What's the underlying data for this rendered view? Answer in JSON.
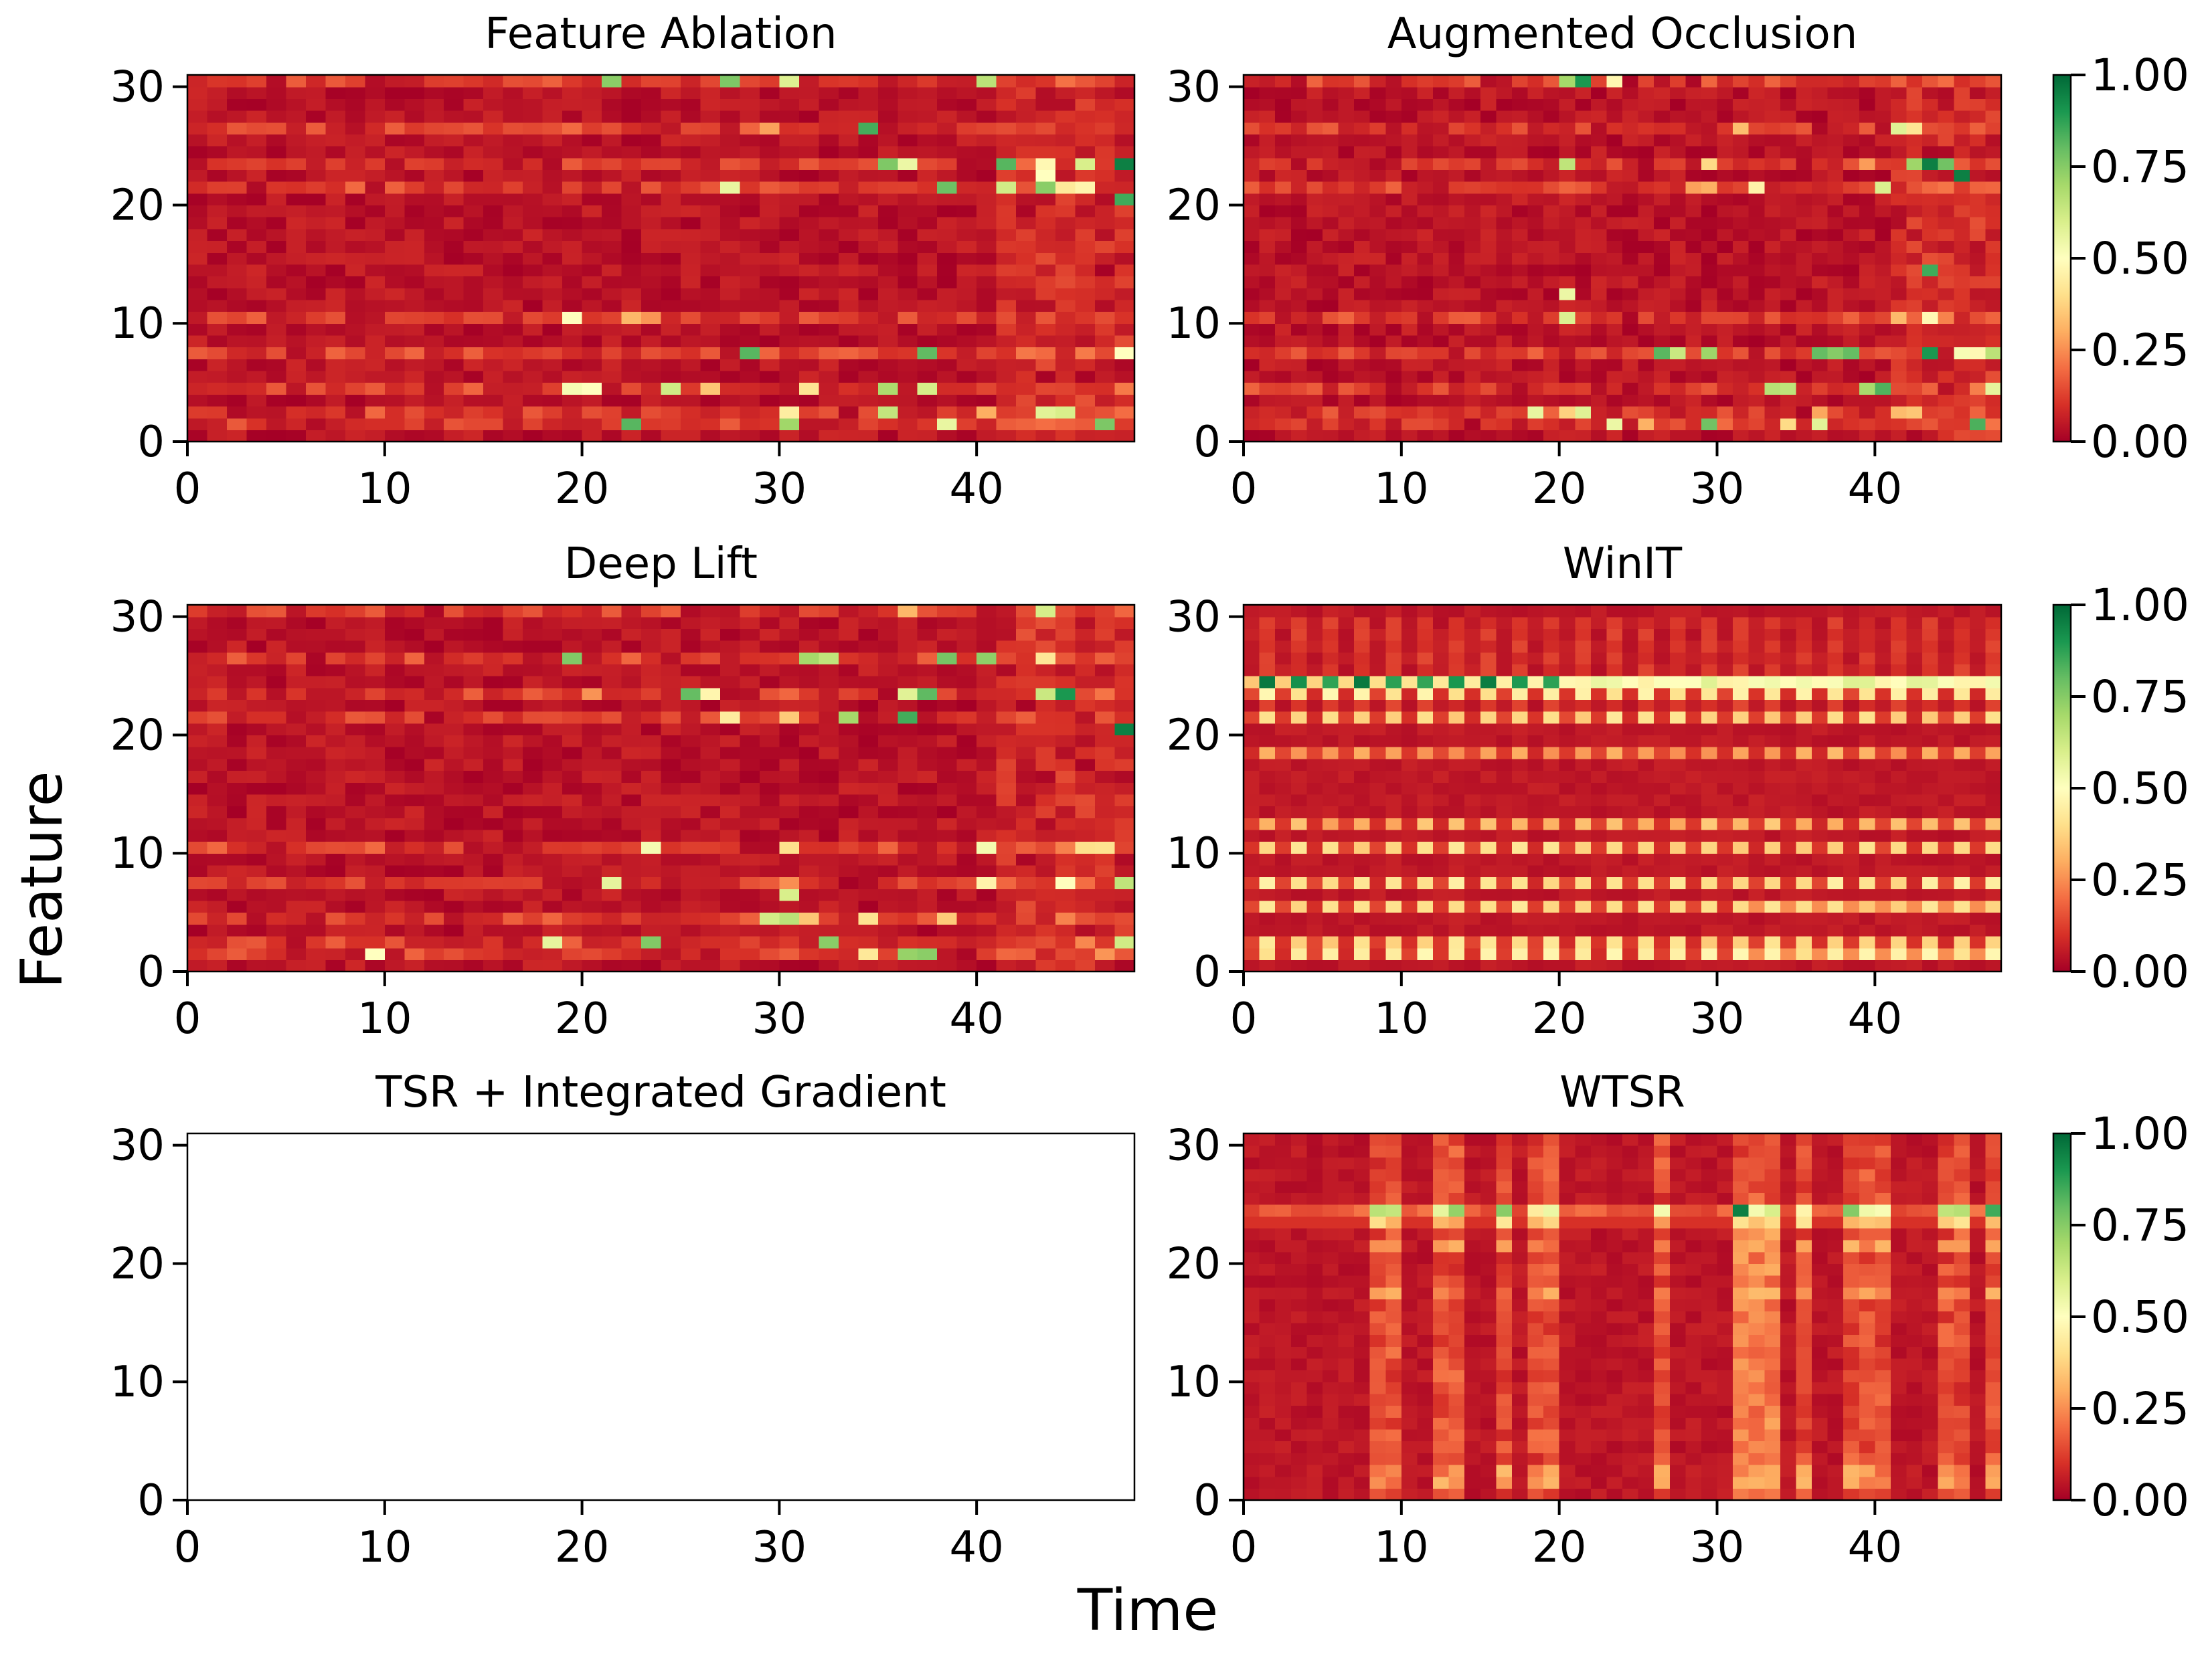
{
  "figure": {
    "xlabel": "Time",
    "ylabel": "Feature"
  },
  "colormap": {
    "name": "RdYlGn",
    "stops": [
      "#a50026",
      "#d73027",
      "#f46d43",
      "#fdae61",
      "#fee08b",
      "#ffffbf",
      "#d9ef8b",
      "#a6d96a",
      "#66bd63",
      "#1a9850",
      "#006837"
    ]
  },
  "chart_data": [
    {
      "type": "heatmap",
      "title": "Feature Ablation",
      "n_time": 48,
      "n_features": 31,
      "xlim": [
        0,
        48
      ],
      "ylim": [
        0,
        31
      ],
      "xticks": [
        0,
        10,
        20,
        30,
        40
      ],
      "yticks": [
        0,
        10,
        20,
        30
      ],
      "value_range": [
        0,
        1
      ],
      "pattern": "sparse-hotspots",
      "values": null
    },
    {
      "type": "heatmap",
      "title": "Augmented Occlusion",
      "n_time": 48,
      "n_features": 31,
      "xlim": [
        0,
        48
      ],
      "ylim": [
        0,
        31
      ],
      "xticks": [
        0,
        10,
        20,
        30,
        40
      ],
      "yticks": [
        0,
        10,
        20,
        30
      ],
      "value_range": [
        0,
        1
      ],
      "pattern": "sparse-hotspots",
      "values": null
    },
    {
      "type": "heatmap",
      "title": "Deep Lift",
      "n_time": 48,
      "n_features": 31,
      "xlim": [
        0,
        48
      ],
      "ylim": [
        0,
        31
      ],
      "xticks": [
        0,
        10,
        20,
        30,
        40
      ],
      "yticks": [
        0,
        10,
        20,
        30
      ],
      "value_range": [
        0,
        1
      ],
      "pattern": "sparse-hotspots",
      "values": null
    },
    {
      "type": "heatmap",
      "title": "WinIT",
      "n_time": 48,
      "n_features": 31,
      "xlim": [
        0,
        48
      ],
      "ylim": [
        0,
        31
      ],
      "xticks": [
        0,
        10,
        20,
        30,
        40
      ],
      "yticks": [
        0,
        10,
        20,
        30
      ],
      "value_range": [
        0,
        1
      ],
      "pattern": "periodic-feature-bands",
      "high_feature": 24,
      "values": null
    },
    {
      "type": "heatmap",
      "title": "TSR + Integrated Gradient",
      "n_time": 48,
      "n_features": 31,
      "xlim": [
        0,
        48
      ],
      "ylim": [
        0,
        31
      ],
      "xticks": [
        0,
        10,
        20,
        30,
        40
      ],
      "yticks": [
        0,
        10,
        20,
        30
      ],
      "value_range": null,
      "pattern": "empty",
      "values": []
    },
    {
      "type": "heatmap",
      "title": "WTSR",
      "n_time": 48,
      "n_features": 31,
      "xlim": [
        0,
        48
      ],
      "ylim": [
        0,
        31
      ],
      "xticks": [
        0,
        10,
        20,
        30,
        40
      ],
      "yticks": [
        0,
        10,
        20,
        30
      ],
      "value_range": [
        0,
        1
      ],
      "pattern": "time-stripes",
      "high_feature": 24,
      "values": null
    }
  ],
  "colorbars": [
    {
      "ticks": [
        "0.00",
        "0.25",
        "0.50",
        "0.75",
        "1.00"
      ]
    },
    {
      "ticks": [
        "0.00",
        "0.25",
        "0.50",
        "0.75",
        "1.00"
      ]
    },
    {
      "ticks": [
        "0.00",
        "0.25",
        "0.50",
        "0.75",
        "1.00"
      ]
    }
  ]
}
